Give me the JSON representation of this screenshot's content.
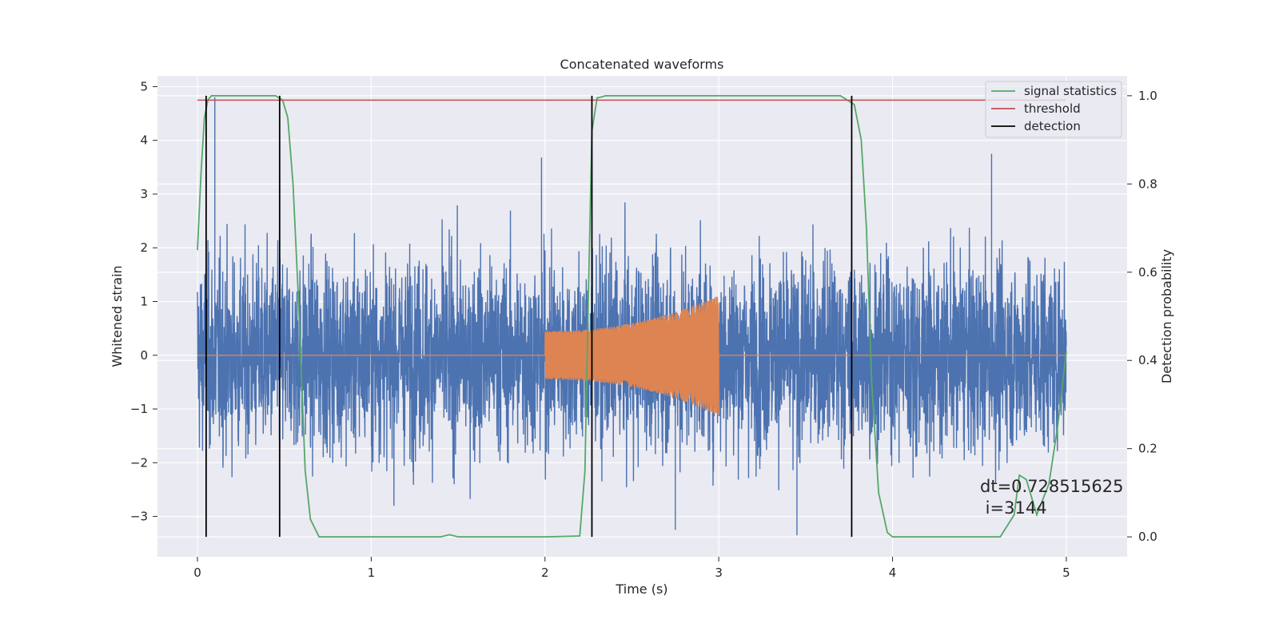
{
  "chart_data": {
    "type": "line",
    "title": "Concatenated waveforms",
    "xlabel": "Time (s)",
    "ylabel": "Whitened strain",
    "y2label": "Detection probability",
    "xlim": [
      -0.23,
      5.35
    ],
    "ylim": [
      -3.75,
      5.2
    ],
    "y2lim": [
      -0.045,
      1.045
    ],
    "x_ticks": [
      "0",
      "1",
      "2",
      "3",
      "4",
      "5"
    ],
    "y_ticks": [
      "−3",
      "−2",
      "−1",
      "0",
      "1",
      "2",
      "3",
      "4",
      "5"
    ],
    "y2_ticks": [
      "0.0",
      "0.2",
      "0.4",
      "0.6",
      "0.8",
      "1.0"
    ],
    "grid": true,
    "legend_position": "top-right",
    "colors": {
      "strain": "#4c72b0",
      "injection": "#dd8452",
      "signal_statistics": "#55a868",
      "threshold": "#c44e52",
      "detection": "#000000",
      "plot_background": "#eaeaf2",
      "grid": "#ffffff"
    },
    "series": [
      {
        "name": "signal statistics",
        "axis": "right",
        "x": [
          0.0,
          0.02,
          0.04,
          0.06,
          0.08,
          0.12,
          0.3,
          0.45,
          0.49,
          0.52,
          0.55,
          0.58,
          0.6,
          0.62,
          0.65,
          0.7,
          1.0,
          1.4,
          1.45,
          1.5,
          2.0,
          2.2,
          2.23,
          2.25,
          2.27,
          2.3,
          2.35,
          3.0,
          3.7,
          3.78,
          3.82,
          3.85,
          3.88,
          3.92,
          3.97,
          4.0,
          4.5,
          4.62,
          4.7,
          4.73,
          4.77,
          4.83,
          4.9,
          4.95,
          5.0
        ],
        "values": [
          0.65,
          0.82,
          0.95,
          0.99,
          1.0,
          1.0,
          1.0,
          1.0,
          0.99,
          0.95,
          0.8,
          0.55,
          0.35,
          0.15,
          0.04,
          0.0,
          0.0,
          0.0,
          0.005,
          0.0,
          0.0,
          0.002,
          0.15,
          0.55,
          0.92,
          0.995,
          1.0,
          1.0,
          1.0,
          0.98,
          0.9,
          0.7,
          0.35,
          0.1,
          0.01,
          0.0,
          0.0,
          0.0,
          0.05,
          0.14,
          0.13,
          0.05,
          0.12,
          0.25,
          0.42
        ]
      },
      {
        "name": "threshold",
        "axis": "right",
        "x": [
          0.0,
          5.0
        ],
        "values": [
          0.99,
          0.99
        ]
      },
      {
        "name": "detection",
        "axis": "right",
        "type": "vlines",
        "x": [
          0.05,
          0.473,
          2.27,
          3.765
        ],
        "ymin": 0.0,
        "ymax": 1.0
      },
      {
        "axis": "left",
        "kind": "noise",
        "x_range": [
          0.0,
          5.0
        ],
        "typical_abs_peak": 2.3,
        "max": 4.8,
        "min": -3.35
      },
      {
        "axis": "left",
        "kind": "chirp",
        "x_range": [
          2.0,
          3.0
        ],
        "amplitude_start": 0.45,
        "amplitude_end": 1.12,
        "outside_value": 0.0
      }
    ],
    "annotation": [
      "dt=0.728515625",
      " i=3144"
    ]
  }
}
